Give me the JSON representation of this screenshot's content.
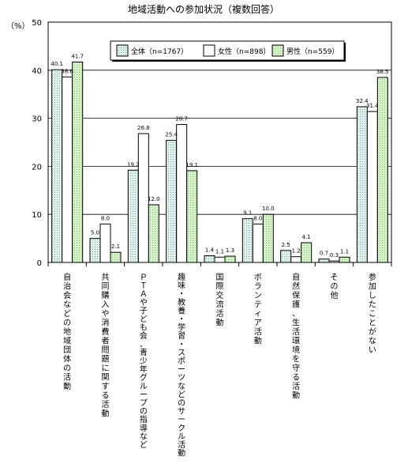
{
  "chart_data": {
    "type": "bar",
    "title": "地域活動への参加状況（複数回答）",
    "ylabel": "（%）",
    "xlabel": "",
    "ylim": [
      0,
      50
    ],
    "yticks": [
      0,
      10,
      20,
      30,
      40,
      50
    ],
    "grid": true,
    "legend_position": "top-right",
    "categories": [
      "自治会などの地域団体の活動",
      "共同購入や消費者問題に関する活動",
      "ＰＴＡや子ども会、青少年グループの指導など",
      "趣味・教養・学習・スポーツなどのサークル活動",
      "国際交流活動",
      "ボランティア活動",
      "自然保護、生活環境を守る活動",
      "その他",
      "参加したことがない"
    ],
    "series": [
      {
        "name": "全体（n=1767）",
        "values": [
          40.1,
          5.0,
          19.2,
          25.4,
          1.4,
          9.1,
          2.5,
          0.7,
          32.4
        ],
        "labels": [
          "40.1",
          "5.0",
          "19.2",
          "25.4",
          "1.4",
          "9.1",
          "2.5",
          "0.7",
          "32.4"
        ],
        "fill": "#dff2ee"
      },
      {
        "name": "女性（n=898）",
        "values": [
          38.6,
          8.0,
          26.8,
          28.7,
          1.1,
          8.0,
          1.2,
          0.3,
          31.4
        ],
        "labels": [
          "38.6",
          "8.0",
          "26.8",
          "28.7",
          "1.1",
          "8.0",
          "1.2",
          "0.3",
          "31.4"
        ],
        "fill": "#ffffff"
      },
      {
        "name": "男性（n=559）",
        "values": [
          41.7,
          2.1,
          12.0,
          19.1,
          1.3,
          10.0,
          4.1,
          1.1,
          38.5
        ],
        "labels": [
          "41.7",
          "2.1",
          "12.0",
          "19.1",
          "1.3",
          "10.0",
          "4.1",
          "1.1",
          "38.5"
        ],
        "fill": "#d4f5c8"
      }
    ],
    "colors": {
      "axis": "#000000",
      "grid": "#000000",
      "bar_stroke": "#000000"
    }
  }
}
